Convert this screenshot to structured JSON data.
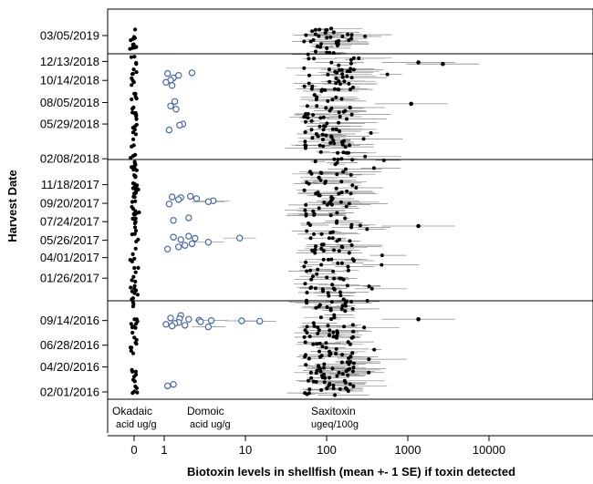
{
  "chart_data": {
    "type": "scatter",
    "title": "",
    "xlabel": "Biotoxin levels in shellfish (mean +- 1 SE) if toxin detected",
    "ylabel": "Harvest Date",
    "x_scale": "log",
    "xlim": [
      0.5,
      12000
    ],
    "x_ticks": [
      {
        "value": 1,
        "label": "1"
      },
      {
        "value": 10,
        "label": "10"
      },
      {
        "value": 100,
        "label": "100"
      },
      {
        "value": 1000,
        "label": "1000"
      },
      {
        "value": 10000,
        "label": "10000"
      }
    ],
    "x_extra_tick": {
      "label": "0"
    },
    "y_ticks": [
      "03/05/2019",
      "12/13/2018",
      "10/14/2018",
      "08/05/2018",
      "05/29/2018",
      "02/08/2018",
      "11/18/2017",
      "09/20/2017",
      "07/24/2017",
      "05/26/2017",
      "04/01/2017",
      "01/26/2017",
      "09/14/2016",
      "06/28/2016",
      "04/20/2016",
      "02/01/2016"
    ],
    "ylim": [
      "02/01/2016",
      "03/05/2019"
    ],
    "year_separators": [
      "12/13/2018 - 02/08/2018",
      "11/18/2017",
      "01/26/2017 - 09/14/2016"
    ],
    "categories": [
      {
        "name": "Okadaic",
        "unit": "acid ug/g"
      },
      {
        "name": "Domoic",
        "unit": "acid ug/g"
      },
      {
        "name": "Saxitoxin",
        "unit": "ugeq/100g"
      }
    ],
    "series": [
      {
        "name": "Okadaic",
        "marker": "filled-circle",
        "color": "#000000",
        "x_approx": 0,
        "n_points": 150
      },
      {
        "name": "Domoic",
        "marker": "open-circle",
        "color": "#4a66a8",
        "points": [
          {
            "date": "11/05/2018",
            "x": 1.1
          },
          {
            "date": "10/30/2018",
            "x": 1.5
          },
          {
            "date": "11/07/2018",
            "x": 2.2
          },
          {
            "date": "10/22/2018",
            "x": 1.3
          },
          {
            "date": "10/15/2018",
            "x": 1.2
          },
          {
            "date": "10/08/2018",
            "x": 1.05
          },
          {
            "date": "09/28/2018",
            "x": 1.25
          },
          {
            "date": "08/08/2018",
            "x": 1.35
          },
          {
            "date": "07/25/2018",
            "x": 1.2
          },
          {
            "date": "07/15/2018",
            "x": 1.4
          },
          {
            "date": "05/29/2018",
            "x": 1.7
          },
          {
            "date": "05/25/2018",
            "x": 1.55
          },
          {
            "date": "05/10/2018",
            "x": 1.15
          },
          {
            "date": "10/10/2017",
            "x": 1.25
          },
          {
            "date": "10/08/2017",
            "x": 1.6
          },
          {
            "date": "10/12/2017",
            "x": 2.1
          },
          {
            "date": "10/05/2017",
            "x": 2.5
          },
          {
            "date": "10/02/2017",
            "x": 1.5
          },
          {
            "date": "09/28/2017",
            "x": 4.0
          },
          {
            "date": "09/25/2017",
            "x": 3.5
          },
          {
            "date": "09/18/2017",
            "x": 1.15
          },
          {
            "date": "08/05/2017",
            "x": 2.0
          },
          {
            "date": "07/28/2017",
            "x": 1.3
          },
          {
            "date": "06/05/2017",
            "x": 1.3
          },
          {
            "date": "06/08/2017",
            "x": 2.0
          },
          {
            "date": "06/01/2017",
            "x": 2.4
          },
          {
            "date": "06/02/2017",
            "x": 8.5
          },
          {
            "date": "05/28/2017",
            "x": 1.6
          },
          {
            "date": "05/20/2017",
            "x": 3.5
          },
          {
            "date": "05/15/2017",
            "x": 2.2
          },
          {
            "date": "05/10/2017",
            "x": 1.8
          },
          {
            "date": "05/05/2017",
            "x": 1.5
          },
          {
            "date": "04/28/2017",
            "x": 1.1
          },
          {
            "date": "09/30/2016",
            "x": 1.6
          },
          {
            "date": "09/22/2016",
            "x": 1.2
          },
          {
            "date": "09/20/2016",
            "x": 1.55
          },
          {
            "date": "09/18/2016",
            "x": 2.0
          },
          {
            "date": "09/15/2016",
            "x": 2.7
          },
          {
            "date": "09/14/2016",
            "x": 3.8
          },
          {
            "date": "09/13/2016",
            "x": 9.0
          },
          {
            "date": "09/12/2016",
            "x": 15.0
          },
          {
            "date": "09/10/2016",
            "x": 2.8
          },
          {
            "date": "09/08/2016",
            "x": 1.5
          },
          {
            "date": "09/05/2016",
            "x": 1.35
          },
          {
            "date": "09/02/2016",
            "x": 1.05
          },
          {
            "date": "08/30/2016",
            "x": 1.8
          },
          {
            "date": "08/28/2016",
            "x": 1.25
          },
          {
            "date": "08/25/2016",
            "x": 3.5
          },
          {
            "date": "02/25/2016",
            "x": 1.3
          },
          {
            "date": "02/20/2016",
            "x": 1.1
          }
        ]
      },
      {
        "name": "Saxitoxin",
        "marker": "filled-circle-with-error-bar",
        "color": "#000000",
        "x_range": [
          25,
          2800
        ],
        "n_points": 420,
        "highlights": [
          {
            "date": "12/10/2018",
            "x": 1350
          },
          {
            "date": "12/05/2018",
            "x": 2700
          },
          {
            "date": "08/01/2018",
            "x": 1100
          },
          {
            "date": "07/10/2017",
            "x": 1350
          },
          {
            "date": "09/18/2016",
            "x": 1350
          }
        ]
      }
    ]
  }
}
